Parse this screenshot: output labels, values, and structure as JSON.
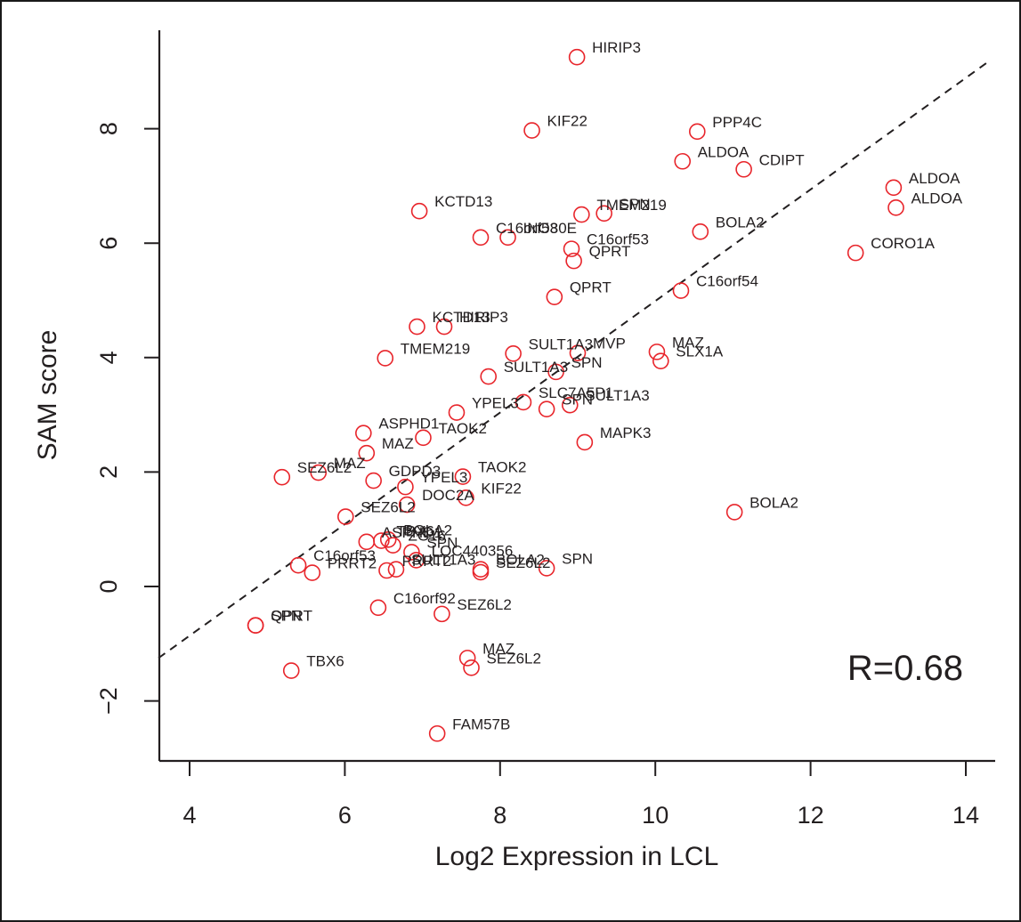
{
  "chart_data": {
    "type": "scatter",
    "title": "",
    "xlabel": "Log2 Expression in LCL",
    "ylabel": "SAM score",
    "xlim": [
      3.6,
      14.4
    ],
    "ylim": [
      -3.0,
      9.8
    ],
    "x_ticks": [
      4,
      6,
      8,
      10,
      12,
      14
    ],
    "y_ticks": [
      -2,
      0,
      2,
      4,
      6,
      8
    ],
    "annotation": "R=0.68",
    "annotation_position": "bottom-right",
    "grid": false,
    "legend": "none",
    "marker": "open-circle",
    "colors": {
      "points": "#e8252b",
      "axes": "#231f20",
      "trend": "#231f20"
    },
    "trend_line": {
      "style": "dashed",
      "x": [
        3.6,
        14.3
      ],
      "y": [
        -1.25,
        9.18
      ]
    },
    "points": [
      {
        "label": "HIRIP3",
        "x": 8.99,
        "y": 9.25
      },
      {
        "label": "KIF22",
        "x": 8.41,
        "y": 7.97
      },
      {
        "label": "PPP4C",
        "x": 10.54,
        "y": 7.95
      },
      {
        "label": "ALDOA",
        "x": 10.35,
        "y": 7.43
      },
      {
        "label": "CDIPT",
        "x": 11.14,
        "y": 7.29
      },
      {
        "label": "ALDOA",
        "x": 13.07,
        "y": 6.97
      },
      {
        "label": "ALDOA",
        "x": 13.1,
        "y": 6.62
      },
      {
        "label": "KCTD13",
        "x": 6.96,
        "y": 6.56
      },
      {
        "label": "SPN",
        "x": 9.34,
        "y": 6.52
      },
      {
        "label": "TMEM219",
        "x": 9.05,
        "y": 6.5
      },
      {
        "label": "BOLA2",
        "x": 10.58,
        "y": 6.2
      },
      {
        "label": "C16orf53",
        "x": 7.75,
        "y": 6.1
      },
      {
        "label": "INO80E",
        "x": 8.1,
        "y": 6.1
      },
      {
        "label": "C16orf53",
        "x": 8.92,
        "y": 5.9
      },
      {
        "label": "QPRT",
        "x": 8.95,
        "y": 5.69
      },
      {
        "label": "CORO1A",
        "x": 12.58,
        "y": 5.83
      },
      {
        "label": "QPRT",
        "x": 8.7,
        "y": 5.06
      },
      {
        "label": "C16orf54",
        "x": 10.33,
        "y": 5.17
      },
      {
        "label": "KCTD13",
        "x": 6.93,
        "y": 4.54
      },
      {
        "label": "HIRIP3",
        "x": 7.28,
        "y": 4.54
      },
      {
        "label": "TMEM219",
        "x": 6.52,
        "y": 3.99
      },
      {
        "label": "SULT1A3",
        "x": 8.17,
        "y": 4.07
      },
      {
        "label": "MVP",
        "x": 9.0,
        "y": 4.08
      },
      {
        "label": "MAZ",
        "x": 10.02,
        "y": 4.1
      },
      {
        "label": "SLX1A",
        "x": 10.07,
        "y": 3.94
      },
      {
        "label": "SULT1A3",
        "x": 7.85,
        "y": 3.67
      },
      {
        "label": "SPN",
        "x": 8.72,
        "y": 3.75
      },
      {
        "label": "SLC7A5P1",
        "x": 8.3,
        "y": 3.22
      },
      {
        "label": "SPN",
        "x": 8.6,
        "y": 3.1
      },
      {
        "label": "SULT1A3",
        "x": 8.9,
        "y": 3.17
      },
      {
        "label": "YPEL3",
        "x": 7.44,
        "y": 3.04
      },
      {
        "label": "ASPHD1",
        "x": 6.24,
        "y": 2.68
      },
      {
        "label": "TAOK2",
        "x": 7.01,
        "y": 2.6
      },
      {
        "label": "MAPK3",
        "x": 9.09,
        "y": 2.52
      },
      {
        "label": "MAZ",
        "x": 6.28,
        "y": 2.33
      },
      {
        "label": "SEZ6L2",
        "x": 5.19,
        "y": 1.91
      },
      {
        "label": "MAZ",
        "x": 5.66,
        "y": 1.99
      },
      {
        "label": "GDPD3",
        "x": 6.37,
        "y": 1.85
      },
      {
        "label": "TAOK2",
        "x": 7.52,
        "y": 1.92
      },
      {
        "label": "YPEL3",
        "x": 6.78,
        "y": 1.74
      },
      {
        "label": "KIF22",
        "x": 7.56,
        "y": 1.55
      },
      {
        "label": "DOC2A",
        "x": 6.8,
        "y": 1.43
      },
      {
        "label": "SEZ6L2",
        "x": 6.01,
        "y": 1.22
      },
      {
        "label": "BOLA2",
        "x": 11.02,
        "y": 1.3
      },
      {
        "label": "ASPHD1",
        "x": 6.28,
        "y": 0.78
      },
      {
        "label": "TBX6",
        "x": 6.47,
        "y": 0.8
      },
      {
        "label": "BOLA2",
        "x": 6.56,
        "y": 0.82
      },
      {
        "label": "ZG16",
        "x": 6.62,
        "y": 0.72
      },
      {
        "label": "SPN",
        "x": 6.86,
        "y": 0.6
      },
      {
        "label": "C16orf53",
        "x": 5.4,
        "y": 0.37
      },
      {
        "label": "PRRT2",
        "x": 5.58,
        "y": 0.24
      },
      {
        "label": "PRRT2",
        "x": 6.54,
        "y": 0.28
      },
      {
        "label": "SULT1A3",
        "x": 6.66,
        "y": 0.3
      },
      {
        "label": "LOC440356",
        "x": 6.92,
        "y": 0.46
      },
      {
        "label": "BOLA2",
        "x": 7.75,
        "y": 0.3
      },
      {
        "label": "SEZ6L2",
        "x": 7.75,
        "y": 0.25
      },
      {
        "label": "SPN",
        "x": 8.6,
        "y": 0.32
      },
      {
        "label": "C16orf92",
        "x": 6.43,
        "y": -0.37
      },
      {
        "label": "SEZ6L2",
        "x": 7.25,
        "y": -0.48
      },
      {
        "label": "QPRT",
        "x": 4.85,
        "y": -0.68
      },
      {
        "label": "SPN",
        "x": 4.85,
        "y": -0.68
      },
      {
        "label": "TBX6",
        "x": 5.31,
        "y": -1.47
      },
      {
        "label": "MAZ",
        "x": 7.58,
        "y": -1.25
      },
      {
        "label": "SEZ6L2",
        "x": 7.63,
        "y": -1.42
      },
      {
        "label": "FAM57B",
        "x": 7.19,
        "y": -2.57
      }
    ]
  }
}
